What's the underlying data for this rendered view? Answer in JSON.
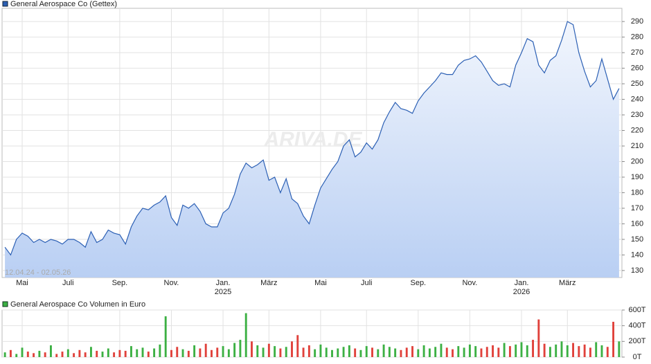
{
  "chart_data": [
    {
      "type": "line",
      "legend": "General Aerospace Co (Gettex)",
      "range_label": "12.04.24 - 02.05.26",
      "watermark": "ARIVA.DE",
      "color": "#2b5fb4",
      "categories": [
        null,
        null,
        null,
        "Mai",
        null,
        null,
        null,
        null,
        null,
        null,
        null,
        "Juli",
        null,
        null,
        null,
        null,
        null,
        null,
        null,
        null,
        "Sep.",
        null,
        null,
        null,
        null,
        null,
        null,
        null,
        null,
        "Nov.",
        null,
        null,
        null,
        null,
        null,
        null,
        null,
        null,
        "Jan.",
        null,
        null,
        null,
        null,
        null,
        null,
        null,
        "März",
        null,
        null,
        null,
        null,
        null,
        null,
        null,
        null,
        "Mai",
        null,
        null,
        null,
        null,
        null,
        null,
        null,
        "Juli",
        null,
        null,
        null,
        null,
        null,
        null,
        null,
        null,
        "Sep.",
        null,
        null,
        null,
        null,
        null,
        null,
        null,
        null,
        "Nov.",
        null,
        null,
        null,
        null,
        null,
        null,
        null,
        null,
        "Jan.",
        null,
        null,
        null,
        null,
        null,
        null,
        null,
        "März",
        null,
        null,
        null,
        null,
        null,
        null,
        null,
        null,
        null
      ],
      "year_labels": [
        {
          "at": 38,
          "label": "2025"
        },
        {
          "at": 90,
          "label": "2026"
        }
      ],
      "values": [
        145,
        140,
        150,
        154,
        152,
        148,
        150,
        148,
        150,
        149,
        147,
        150,
        150,
        148,
        145,
        155,
        148,
        150,
        156,
        154,
        153,
        147,
        158,
        165,
        170,
        169,
        172,
        174,
        178,
        164,
        159,
        172,
        170,
        173,
        168,
        160,
        158,
        158,
        167,
        170,
        179,
        192,
        199,
        196,
        198,
        201,
        188,
        190,
        180,
        189,
        176,
        173,
        165,
        160,
        172,
        183,
        189,
        195,
        200,
        210,
        214,
        203,
        206,
        212,
        208,
        214,
        225,
        232,
        238,
        234,
        233,
        231,
        239,
        244,
        248,
        252,
        257,
        256,
        256,
        262,
        265,
        266,
        268,
        264,
        258,
        252,
        249,
        250,
        248,
        262,
        270,
        279,
        277,
        262,
        257,
        265,
        268,
        278,
        290,
        288,
        270,
        258,
        248,
        252,
        266,
        253,
        240,
        247
      ],
      "ylim": [
        125.5,
        298.5
      ],
      "yticks": [
        130,
        140,
        150,
        160,
        170,
        180,
        190,
        200,
        210,
        220,
        230,
        240,
        250,
        260,
        270,
        280,
        290
      ],
      "grid": true
    },
    {
      "type": "bar",
      "legend": "General Aerospace Co Volumen in Euro",
      "legend_color": "#3cb043",
      "values": [
        60,
        90,
        40,
        120,
        70,
        50,
        80,
        60,
        150,
        40,
        70,
        100,
        50,
        90,
        60,
        130,
        80,
        70,
        110,
        60,
        90,
        80,
        140,
        100,
        120,
        70,
        110,
        160,
        520,
        90,
        130,
        100,
        80,
        150,
        110,
        170,
        90,
        120,
        140,
        100,
        180,
        220,
        560,
        200,
        150,
        120,
        170,
        140,
        110,
        130,
        200,
        280,
        120,
        150,
        100,
        160,
        120,
        90,
        110,
        130,
        150,
        110,
        90,
        140,
        120,
        100,
        160,
        130,
        110,
        90,
        120,
        140,
        100,
        150,
        110,
        130,
        170,
        120,
        100,
        140,
        120,
        160,
        140,
        110,
        130,
        150,
        120,
        180,
        140,
        160,
        190,
        150,
        220,
        480,
        170,
        130,
        160,
        200,
        150,
        180,
        140,
        160,
        120,
        190,
        150,
        130,
        450,
        200
      ],
      "colors": [
        "#3cb043",
        "#e0413b",
        "#3cb043",
        "#3cb043",
        "#e0413b",
        "#e0413b",
        "#3cb043",
        "#e0413b",
        "#3cb043",
        "#e0413b",
        "#e0413b",
        "#3cb043",
        "#e0413b",
        "#e0413b",
        "#e0413b",
        "#3cb043",
        "#e0413b",
        "#3cb043",
        "#3cb043",
        "#e0413b",
        "#e0413b",
        "#e0413b",
        "#3cb043",
        "#3cb043",
        "#3cb043",
        "#e0413b",
        "#3cb043",
        "#3cb043",
        "#3cb043",
        "#e0413b",
        "#e0413b",
        "#3cb043",
        "#e0413b",
        "#3cb043",
        "#e0413b",
        "#e0413b",
        "#e0413b",
        "#e0413b",
        "#3cb043",
        "#3cb043",
        "#3cb043",
        "#3cb043",
        "#3cb043",
        "#e0413b",
        "#3cb043",
        "#3cb043",
        "#e0413b",
        "#3cb043",
        "#e0413b",
        "#3cb043",
        "#e0413b",
        "#e0413b",
        "#e0413b",
        "#e0413b",
        "#3cb043",
        "#3cb043",
        "#3cb043",
        "#3cb043",
        "#3cb043",
        "#3cb043",
        "#3cb043",
        "#e0413b",
        "#3cb043",
        "#3cb043",
        "#e0413b",
        "#3cb043",
        "#3cb043",
        "#3cb043",
        "#3cb043",
        "#e0413b",
        "#e0413b",
        "#e0413b",
        "#3cb043",
        "#3cb043",
        "#3cb043",
        "#3cb043",
        "#3cb043",
        "#e0413b",
        "#e0413b",
        "#3cb043",
        "#3cb043",
        "#3cb043",
        "#3cb043",
        "#e0413b",
        "#e0413b",
        "#e0413b",
        "#e0413b",
        "#3cb043",
        "#e0413b",
        "#3cb043",
        "#3cb043",
        "#3cb043",
        "#e0413b",
        "#e0413b",
        "#e0413b",
        "#3cb043",
        "#3cb043",
        "#3cb043",
        "#3cb043",
        "#e0413b",
        "#e0413b",
        "#e0413b",
        "#e0413b",
        "#3cb043",
        "#3cb043",
        "#e0413b",
        "#e0413b",
        "#3cb043"
      ],
      "ylim": [
        0,
        600
      ],
      "yticks": [
        {
          "value": 0,
          "label": "0T"
        },
        {
          "value": 200,
          "label": "200T"
        },
        {
          "value": 400,
          "label": "400T"
        },
        {
          "value": 600,
          "label": "600T"
        }
      ],
      "grid": true
    }
  ]
}
